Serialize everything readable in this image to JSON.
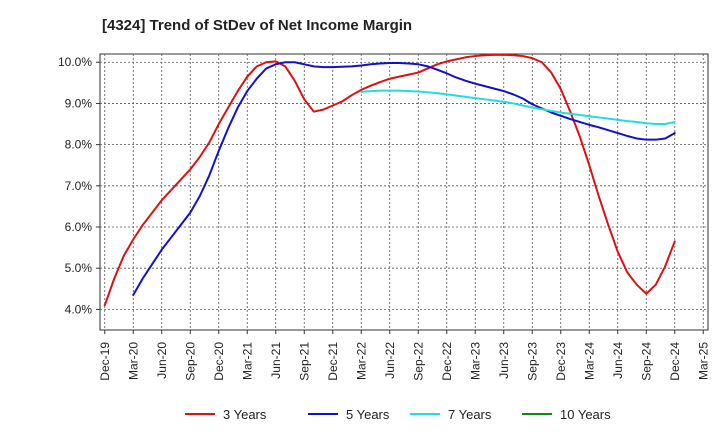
{
  "chart_data": {
    "type": "line",
    "title": "[4324]  Trend of StDev of Net Income Margin",
    "xlabel": "",
    "ylabel": "",
    "x_tick_labels": [
      "Dec-19",
      "Mar-20",
      "Jun-20",
      "Sep-20",
      "Dec-20",
      "Mar-21",
      "Jun-21",
      "Sep-21",
      "Dec-21",
      "Mar-22",
      "Jun-22",
      "Sep-22",
      "Dec-22",
      "Mar-23",
      "Jun-23",
      "Sep-23",
      "Dec-23",
      "Mar-24",
      "Jun-24",
      "Sep-24",
      "Dec-24",
      "Mar-25"
    ],
    "y_tick_labels": [
      "4.0%",
      "5.0%",
      "6.0%",
      "7.0%",
      "8.0%",
      "9.0%",
      "10.0%"
    ],
    "y_ticks": [
      4,
      5,
      6,
      7,
      8,
      9,
      10
    ],
    "ylim": [
      3.5,
      10.2
    ],
    "grid": true,
    "legend_position": "bottom",
    "series": [
      {
        "name": "3 Years",
        "color": "#dd1111",
        "x": [
          "Dec-19",
          "Jan-20",
          "Feb-20",
          "Mar-20",
          "Apr-20",
          "May-20",
          "Jun-20",
          "Jul-20",
          "Aug-20",
          "Sep-20",
          "Oct-20",
          "Nov-20",
          "Dec-20",
          "Jan-21",
          "Feb-21",
          "Mar-21",
          "Apr-21",
          "May-21",
          "Jun-21",
          "Jul-21",
          "Aug-21",
          "Sep-21",
          "Oct-21",
          "Nov-21",
          "Dec-21",
          "Jan-22",
          "Feb-22",
          "Mar-22",
          "Apr-22",
          "May-22",
          "Jun-22",
          "Jul-22",
          "Aug-22",
          "Sep-22",
          "Oct-22",
          "Nov-22",
          "Dec-22",
          "Jan-23",
          "Feb-23",
          "Mar-23",
          "Apr-23",
          "May-23",
          "Jun-23",
          "Jul-23",
          "Aug-23",
          "Sep-23",
          "Oct-23",
          "Nov-23",
          "Dec-23",
          "Jan-24",
          "Feb-24",
          "Mar-24",
          "Apr-24",
          "May-24",
          "Jun-24",
          "Jul-24",
          "Aug-24",
          "Sep-24",
          "Oct-24",
          "Nov-24",
          "Dec-24"
        ],
        "values": [
          4.1,
          4.75,
          5.3,
          5.7,
          6.05,
          6.35,
          6.65,
          6.9,
          7.15,
          7.4,
          7.7,
          8.05,
          8.5,
          8.9,
          9.3,
          9.65,
          9.9,
          10.0,
          10.02,
          9.9,
          9.55,
          9.1,
          8.8,
          8.85,
          8.95,
          9.05,
          9.2,
          9.33,
          9.43,
          9.52,
          9.6,
          9.65,
          9.7,
          9.75,
          9.85,
          9.95,
          10.02,
          10.07,
          10.12,
          10.15,
          10.17,
          10.18,
          10.18,
          10.17,
          10.15,
          10.1,
          10.0,
          9.75,
          9.35,
          8.8,
          8.2,
          7.5,
          6.75,
          6.05,
          5.4,
          4.9,
          4.6,
          4.38,
          4.6,
          5.05,
          5.65
        ]
      },
      {
        "name": "5 Years",
        "color": "#1111cc",
        "x": [
          "Mar-20",
          "Apr-20",
          "May-20",
          "Jun-20",
          "Jul-20",
          "Aug-20",
          "Sep-20",
          "Oct-20",
          "Nov-20",
          "Dec-20",
          "Jan-21",
          "Feb-21",
          "Mar-21",
          "Apr-21",
          "May-21",
          "Jun-21",
          "Jul-21",
          "Aug-21",
          "Sep-21",
          "Oct-21",
          "Nov-21",
          "Dec-21",
          "Jan-22",
          "Feb-22",
          "Mar-22",
          "Apr-22",
          "May-22",
          "Jun-22",
          "Jul-22",
          "Aug-22",
          "Sep-22",
          "Oct-22",
          "Nov-22",
          "Dec-22",
          "Jan-23",
          "Feb-23",
          "Mar-23",
          "Apr-23",
          "May-23",
          "Jun-23",
          "Jul-23",
          "Aug-23",
          "Sep-23",
          "Oct-23",
          "Nov-23",
          "Dec-23",
          "Jan-24",
          "Feb-24",
          "Mar-24",
          "Apr-24",
          "May-24",
          "Jun-24",
          "Jul-24",
          "Aug-24",
          "Sep-24",
          "Oct-24",
          "Nov-24",
          "Dec-24"
        ],
        "values": [
          4.35,
          4.75,
          5.1,
          5.45,
          5.75,
          6.05,
          6.35,
          6.75,
          7.25,
          7.85,
          8.4,
          8.9,
          9.3,
          9.6,
          9.85,
          9.95,
          10.0,
          10.0,
          9.95,
          9.9,
          9.88,
          9.88,
          9.89,
          9.9,
          9.92,
          9.95,
          9.97,
          9.98,
          9.98,
          9.97,
          9.95,
          9.9,
          9.82,
          9.73,
          9.63,
          9.55,
          9.48,
          9.42,
          9.36,
          9.3,
          9.22,
          9.12,
          8.98,
          8.88,
          8.78,
          8.7,
          8.62,
          8.55,
          8.48,
          8.42,
          8.35,
          8.28,
          8.21,
          8.15,
          8.12,
          8.12,
          8.15,
          8.28
        ]
      },
      {
        "name": "7 Years",
        "color": "#22dddd",
        "x": [
          "Mar-22",
          "Apr-22",
          "May-22",
          "Jun-22",
          "Jul-22",
          "Aug-22",
          "Sep-22",
          "Oct-22",
          "Nov-22",
          "Dec-22",
          "Jan-23",
          "Feb-23",
          "Mar-23",
          "Apr-23",
          "May-23",
          "Jun-23",
          "Jul-23",
          "Aug-23",
          "Sep-23",
          "Oct-23",
          "Nov-23",
          "Dec-23",
          "Jan-24",
          "Feb-24",
          "Mar-24",
          "Apr-24",
          "May-24",
          "Jun-24",
          "Jul-24",
          "Aug-24",
          "Sep-24",
          "Oct-24",
          "Nov-24",
          "Dec-24"
        ],
        "values": [
          9.28,
          9.3,
          9.31,
          9.31,
          9.31,
          9.3,
          9.29,
          9.27,
          9.25,
          9.22,
          9.19,
          9.16,
          9.13,
          9.1,
          9.07,
          9.04,
          9.0,
          8.95,
          8.9,
          8.86,
          8.82,
          8.78,
          8.75,
          8.72,
          8.69,
          8.66,
          8.63,
          8.6,
          8.57,
          8.55,
          8.52,
          8.5,
          8.5,
          8.55
        ]
      },
      {
        "name": "10 Years",
        "color": "#118811",
        "x": [],
        "values": []
      }
    ]
  }
}
